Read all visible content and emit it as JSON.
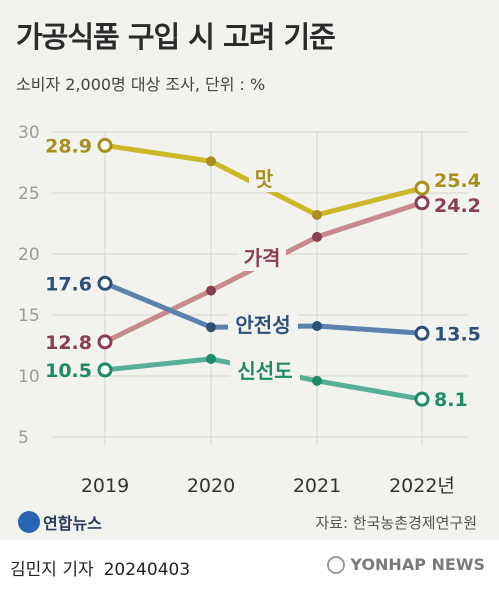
{
  "title": "가공식품 구입 시 고려 기준",
  "subtitle": "소비자 2,000명 대상 조사, 단위 : %",
  "source": "자료: 한국농촌경제연구원",
  "logo_text": "연합뉴스",
  "credit_name": "김민지 기자",
  "credit_date": "20240403",
  "agency": "YONHAP NEWS",
  "chart_data": {
    "type": "line",
    "x": [
      "2019",
      "2020",
      "2021",
      "2022년"
    ],
    "ylim": [
      5,
      30
    ],
    "yticks": [
      5,
      10,
      15,
      20,
      25,
      30
    ],
    "grid": true,
    "series": [
      {
        "name": "맛",
        "values": [
          28.9,
          27.6,
          23.2,
          25.4
        ],
        "color": "#cdb82a",
        "label_color": "#a8901d",
        "start_label": "28.9",
        "end_label": "25.4"
      },
      {
        "name": "가격",
        "values": [
          12.8,
          17.0,
          21.4,
          24.2
        ],
        "color": "#c98990",
        "label_color": "#8a3f4f",
        "start_label": "12.8",
        "end_label": "24.2"
      },
      {
        "name": "안전성",
        "values": [
          17.6,
          14.0,
          14.1,
          13.5
        ],
        "color": "#5b82ab",
        "label_color": "#2e5078",
        "start_label": "17.6",
        "end_label": "13.5"
      },
      {
        "name": "신선도",
        "values": [
          10.5,
          11.4,
          9.6,
          8.1
        ],
        "color": "#58af98",
        "label_color": "#1d8a68",
        "start_label": "10.5",
        "end_label": "8.1"
      }
    ]
  }
}
